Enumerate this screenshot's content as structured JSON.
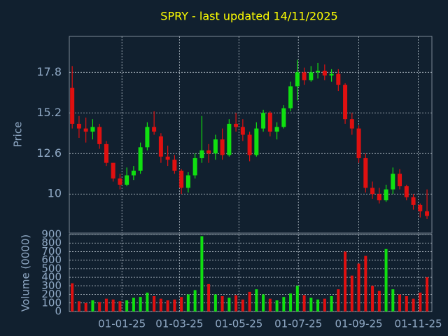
{
  "chart_data": {
    "type": "candlestick",
    "title": "SPRY - last updated 14/11/2025",
    "title_color": "#ffff00",
    "ylabel": "Price",
    "up_color": "#10e010",
    "down_color": "#e01010",
    "xlim": [
      "08-11-24",
      "15-11-25"
    ],
    "xticks": [
      "01-01-25",
      "01-03-25",
      "01-05-25",
      "01-07-25",
      "01-09-25",
      "01-11-25"
    ],
    "ylim": [
      7.5,
      20.1
    ],
    "yticks": [
      17.8,
      15.2,
      12.6,
      10
    ],
    "grid": true,
    "x": [
      "11-11-24",
      "18-11-24",
      "25-11-24",
      "02-12-24",
      "09-12-24",
      "16-12-24",
      "23-12-24",
      "30-12-24",
      "06-01-25",
      "13-01-25",
      "20-01-25",
      "27-01-25",
      "03-02-25",
      "10-02-25",
      "17-02-25",
      "24-02-25",
      "03-03-25",
      "10-03-25",
      "17-03-25",
      "24-03-25",
      "31-03-25",
      "07-04-25",
      "14-04-25",
      "21-04-25",
      "28-04-25",
      "05-05-25",
      "12-05-25",
      "19-05-25",
      "26-05-25",
      "02-06-25",
      "09-06-25",
      "16-06-25",
      "23-06-25",
      "30-06-25",
      "07-07-25",
      "14-07-25",
      "21-07-25",
      "28-07-25",
      "04-08-25",
      "11-08-25",
      "18-08-25",
      "25-08-25",
      "01-09-25",
      "08-09-25",
      "15-09-25",
      "22-09-25",
      "29-09-25",
      "06-10-25",
      "13-10-25",
      "20-10-25",
      "27-10-25",
      "03-11-25",
      "10-11-25"
    ],
    "open": [
      16.8,
      14.5,
      14.2,
      14.0,
      14.3,
      13.2,
      12.0,
      11.0,
      10.6,
      11.2,
      11.5,
      13.0,
      14.3,
      13.7,
      12.4,
      12.2,
      11.5,
      10.4,
      11.2,
      12.3,
      12.8,
      12.6,
      13.5,
      12.5,
      14.5,
      14.3,
      13.8,
      12.5,
      14.2,
      15.2,
      14.0,
      14.3,
      15.5,
      16.9,
      17.8,
      17.3,
      17.8,
      17.9,
      17.6,
      17.7,
      17.0,
      14.8,
      14.2,
      12.3,
      10.4,
      10.0,
      9.6,
      10.3,
      11.3,
      10.5,
      9.8,
      9.3,
      8.9
    ],
    "high": [
      18.2,
      15.0,
      14.9,
      14.8,
      14.5,
      13.4,
      12.0,
      11.3,
      11.7,
      11.8,
      13.3,
      14.6,
      15.3,
      13.9,
      13.1,
      12.5,
      11.6,
      11.4,
      12.6,
      15.0,
      13.2,
      13.8,
      14.2,
      14.8,
      15.2,
      14.8,
      14.0,
      14.6,
      15.4,
      15.3,
      14.6,
      15.7,
      17.2,
      18.6,
      18.1,
      18.2,
      18.4,
      18.3,
      18.0,
      18.0,
      17.1,
      15.2,
      14.4,
      12.6,
      10.8,
      10.4,
      10.6,
      11.7,
      11.6,
      10.6,
      10.0,
      9.4,
      10.3
    ],
    "low": [
      14.2,
      13.6,
      13.3,
      13.5,
      12.9,
      11.8,
      10.8,
      10.3,
      10.5,
      10.9,
      11.3,
      12.8,
      13.8,
      12.0,
      11.8,
      11.3,
      10.0,
      10.1,
      11.0,
      12.0,
      12.0,
      12.2,
      12.2,
      12.4,
      14.0,
      13.4,
      12.1,
      12.4,
      14.0,
      13.7,
      13.5,
      14.2,
      15.3,
      16.0,
      17.0,
      17.2,
      17.4,
      17.3,
      17.2,
      16.6,
      14.5,
      13.8,
      12.0,
      10.1,
      9.7,
      9.4,
      9.5,
      10.0,
      10.3,
      9.6,
      9.0,
      8.5,
      8.4
    ],
    "close": [
      14.5,
      14.2,
      14.0,
      14.3,
      13.2,
      12.0,
      11.0,
      10.6,
      11.2,
      11.5,
      13.0,
      14.3,
      14.0,
      12.4,
      12.2,
      11.5,
      10.4,
      11.2,
      12.3,
      12.8,
      12.6,
      13.5,
      12.5,
      14.5,
      14.3,
      13.8,
      12.5,
      14.2,
      15.2,
      14.0,
      14.3,
      15.5,
      16.9,
      17.8,
      17.3,
      17.8,
      17.9,
      17.6,
      17.7,
      17.0,
      14.8,
      14.2,
      12.3,
      10.4,
      10.0,
      9.6,
      10.3,
      11.3,
      10.5,
      9.8,
      9.3,
      8.9,
      8.6
    ],
    "volume": {
      "ylabel": "Volume (0000)",
      "ylim": [
        0,
        900
      ],
      "yticks": [
        0,
        100,
        200,
        300,
        400,
        500,
        600,
        700,
        800,
        900
      ],
      "values": [
        330,
        120,
        100,
        130,
        110,
        150,
        140,
        120,
        130,
        160,
        170,
        220,
        180,
        150,
        130,
        140,
        170,
        200,
        250,
        880,
        320,
        200,
        180,
        160,
        190,
        140,
        230,
        260,
        200,
        150,
        130,
        170,
        210,
        300,
        190,
        160,
        140,
        150,
        180,
        260,
        700,
        420,
        560,
        650,
        300,
        240,
        730,
        260,
        200,
        180,
        150,
        220,
        400
      ]
    }
  }
}
